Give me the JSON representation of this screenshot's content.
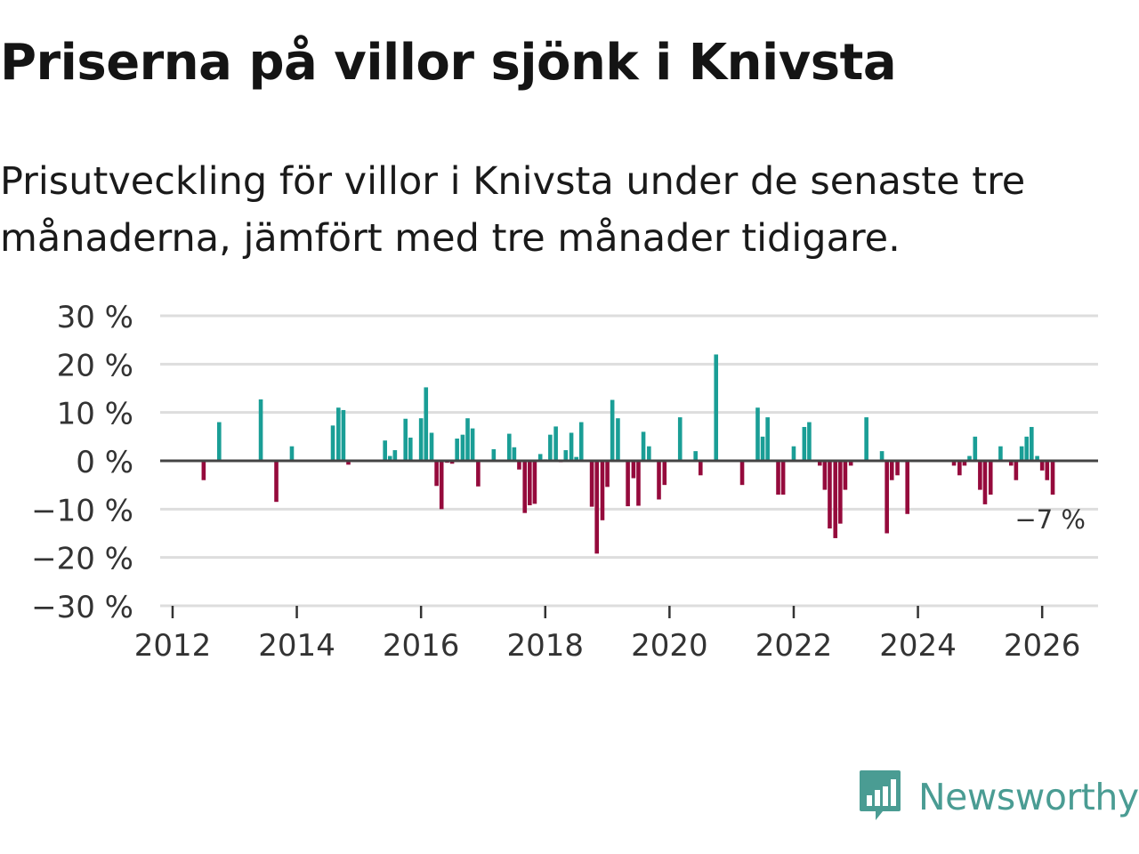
{
  "title": "Priserna på villor sjönk i Knivsta",
  "subtitle": "Prisutveckling för villor i Knivsta under de senaste tre månaderna, jämfört med tre månader tidigare.",
  "colors": {
    "positive": "#1a9e96",
    "negative": "#950a3c",
    "grid": "#dddddd",
    "zero_line": "#444444",
    "logo": "#4a9c93"
  },
  "logo": {
    "text": "Newsworthy",
    "icon": "bar-chart-speech-bubble-icon"
  },
  "chart_data": {
    "type": "bar",
    "title": "Priserna på villor sjönk i Knivsta",
    "ylabel": "",
    "xlabel": "",
    "ylim": [
      -30,
      30
    ],
    "xlim": [
      2011.8,
      2026.9
    ],
    "y_ticks": [
      30,
      20,
      10,
      0,
      -10,
      -20,
      -30
    ],
    "y_tick_labels": [
      "30 %",
      "20 %",
      "10 %",
      "0 %",
      "−10 %",
      "−20 %",
      "−30 %"
    ],
    "x_ticks": [
      2012,
      2014,
      2016,
      2018,
      2020,
      2022,
      2024,
      2026
    ],
    "x_tick_labels": [
      "2012",
      "2014",
      "2016",
      "2018",
      "2020",
      "2022",
      "2024",
      "2026"
    ],
    "last_value_label": "−7 %",
    "series": [
      {
        "name": "Prisutveckling",
        "points": [
          {
            "x": 2012.5,
            "y": -4
          },
          {
            "x": 2012.75,
            "y": 8
          },
          {
            "x": 2013.42,
            "y": 12.7
          },
          {
            "x": 2013.67,
            "y": -8.5
          },
          {
            "x": 2013.92,
            "y": 3
          },
          {
            "x": 2014.58,
            "y": 7.3
          },
          {
            "x": 2014.67,
            "y": 11
          },
          {
            "x": 2014.75,
            "y": 10.5
          },
          {
            "x": 2014.83,
            "y": -0.8
          },
          {
            "x": 2015.42,
            "y": 4.2
          },
          {
            "x": 2015.5,
            "y": 1
          },
          {
            "x": 2015.58,
            "y": 2.2
          },
          {
            "x": 2015.75,
            "y": 8.7
          },
          {
            "x": 2015.83,
            "y": 4.8
          },
          {
            "x": 2016.0,
            "y": 8.8
          },
          {
            "x": 2016.08,
            "y": 15.2
          },
          {
            "x": 2016.17,
            "y": 5.8
          },
          {
            "x": 2016.25,
            "y": -5.2
          },
          {
            "x": 2016.33,
            "y": -10
          },
          {
            "x": 2016.42,
            "y": -0.4
          },
          {
            "x": 2016.5,
            "y": -0.6
          },
          {
            "x": 2016.58,
            "y": 4.6
          },
          {
            "x": 2016.67,
            "y": 5.4
          },
          {
            "x": 2016.75,
            "y": 8.8
          },
          {
            "x": 2016.83,
            "y": 6.7
          },
          {
            "x": 2016.92,
            "y": -5.3
          },
          {
            "x": 2017.17,
            "y": 2.4
          },
          {
            "x": 2017.42,
            "y": 5.6
          },
          {
            "x": 2017.5,
            "y": 2.8
          },
          {
            "x": 2017.58,
            "y": -1.8
          },
          {
            "x": 2017.67,
            "y": -10.8
          },
          {
            "x": 2017.75,
            "y": -9.2
          },
          {
            "x": 2017.83,
            "y": -8.9
          },
          {
            "x": 2017.92,
            "y": 1.4
          },
          {
            "x": 2018.0,
            "y": 0.3
          },
          {
            "x": 2018.08,
            "y": 5.4
          },
          {
            "x": 2018.17,
            "y": 7.1
          },
          {
            "x": 2018.25,
            "y": -0.3
          },
          {
            "x": 2018.33,
            "y": 2.2
          },
          {
            "x": 2018.42,
            "y": 5.8
          },
          {
            "x": 2018.5,
            "y": 0.8
          },
          {
            "x": 2018.58,
            "y": 8
          },
          {
            "x": 2018.75,
            "y": -9.5
          },
          {
            "x": 2018.83,
            "y": -19.2
          },
          {
            "x": 2018.92,
            "y": -12.3
          },
          {
            "x": 2019.0,
            "y": -5.4
          },
          {
            "x": 2019.08,
            "y": 12.6
          },
          {
            "x": 2019.17,
            "y": 8.8
          },
          {
            "x": 2019.33,
            "y": -9.4
          },
          {
            "x": 2019.42,
            "y": -3.6
          },
          {
            "x": 2019.5,
            "y": -9.3
          },
          {
            "x": 2019.58,
            "y": 6
          },
          {
            "x": 2019.67,
            "y": 3
          },
          {
            "x": 2019.83,
            "y": -8
          },
          {
            "x": 2019.92,
            "y": -5
          },
          {
            "x": 2020.17,
            "y": 9
          },
          {
            "x": 2020.42,
            "y": 2
          },
          {
            "x": 2020.5,
            "y": -3
          },
          {
            "x": 2020.75,
            "y": 22
          },
          {
            "x": 2021.17,
            "y": -5
          },
          {
            "x": 2021.42,
            "y": 11
          },
          {
            "x": 2021.5,
            "y": 5
          },
          {
            "x": 2021.58,
            "y": 9
          },
          {
            "x": 2021.75,
            "y": -7
          },
          {
            "x": 2021.83,
            "y": -7
          },
          {
            "x": 2022.0,
            "y": 3
          },
          {
            "x": 2022.17,
            "y": 7
          },
          {
            "x": 2022.25,
            "y": 8
          },
          {
            "x": 2022.42,
            "y": -1
          },
          {
            "x": 2022.5,
            "y": -6
          },
          {
            "x": 2022.58,
            "y": -14
          },
          {
            "x": 2022.67,
            "y": -16
          },
          {
            "x": 2022.75,
            "y": -13
          },
          {
            "x": 2022.83,
            "y": -6
          },
          {
            "x": 2022.92,
            "y": -1
          },
          {
            "x": 2023.17,
            "y": 9
          },
          {
            "x": 2023.42,
            "y": 2
          },
          {
            "x": 2023.5,
            "y": -15
          },
          {
            "x": 2023.58,
            "y": -4
          },
          {
            "x": 2023.67,
            "y": -3
          },
          {
            "x": 2023.83,
            "y": -11
          },
          {
            "x": 2024.58,
            "y": -1
          },
          {
            "x": 2024.67,
            "y": -3
          },
          {
            "x": 2024.75,
            "y": -1
          },
          {
            "x": 2024.83,
            "y": 1
          },
          {
            "x": 2024.92,
            "y": 5
          },
          {
            "x": 2025.0,
            "y": -6
          },
          {
            "x": 2025.08,
            "y": -9
          },
          {
            "x": 2025.17,
            "y": -7
          },
          {
            "x": 2025.33,
            "y": 3
          },
          {
            "x": 2025.5,
            "y": -1
          },
          {
            "x": 2025.58,
            "y": -4
          },
          {
            "x": 2025.67,
            "y": 3
          },
          {
            "x": 2025.75,
            "y": 5
          },
          {
            "x": 2025.83,
            "y": 7
          },
          {
            "x": 2025.92,
            "y": 1
          },
          {
            "x": 2026.0,
            "y": -2
          },
          {
            "x": 2026.08,
            "y": -4
          },
          {
            "x": 2026.17,
            "y": -7
          }
        ]
      }
    ]
  }
}
